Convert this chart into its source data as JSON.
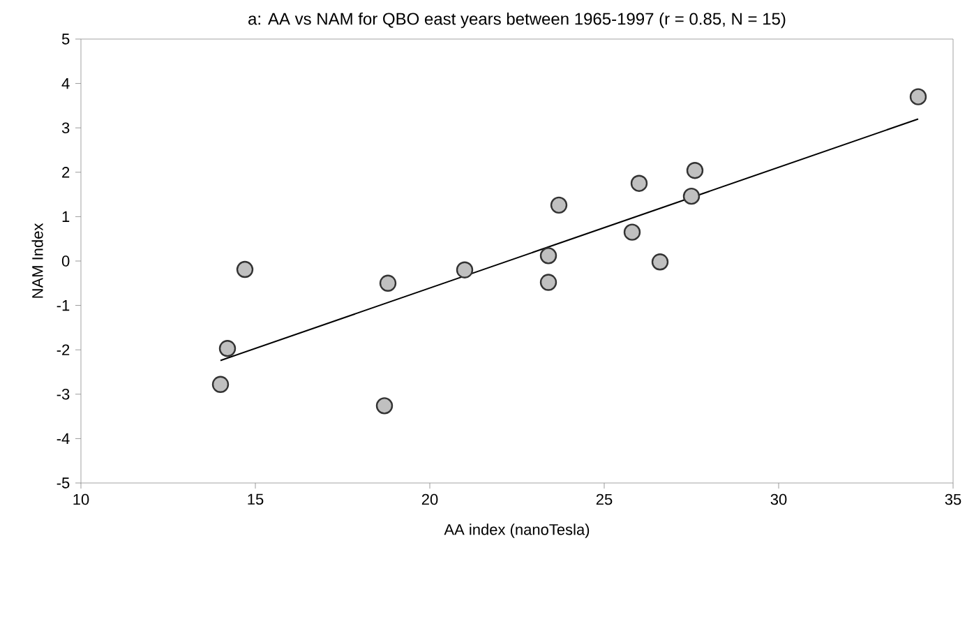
{
  "chart_data": {
    "type": "scatter",
    "title": "a: AA vs NAM for QBO east years between 1965-1997 (r = 0.85, N = 15)",
    "xlabel": "AA index (nanoTesla)",
    "ylabel": "NAM Index",
    "xlim": [
      10,
      35
    ],
    "ylim": [
      -5,
      5
    ],
    "xticks": [
      10,
      15,
      20,
      25,
      30,
      35
    ],
    "yticks": [
      -5,
      -4,
      -3,
      -2,
      -1,
      0,
      1,
      2,
      3,
      4,
      5
    ],
    "series": [
      {
        "marker": "circle",
        "color": "#c0c0c0",
        "x": [
          14.0,
          14.2,
          14.7,
          18.7,
          18.8,
          21.0,
          23.4,
          23.4,
          23.7,
          25.8,
          26.0,
          26.6,
          27.5,
          27.6,
          34.0
        ],
        "values": [
          -2.78,
          -1.97,
          -0.19,
          -3.26,
          -0.5,
          -0.2,
          0.12,
          -0.48,
          1.26,
          0.65,
          1.75,
          -0.02,
          1.46,
          2.04,
          3.7
        ]
      },
      {
        "type": "line",
        "marker": "none",
        "color": "#000000",
        "x": [
          14.0,
          34.0
        ],
        "values": [
          -2.24,
          3.2
        ]
      }
    ]
  }
}
